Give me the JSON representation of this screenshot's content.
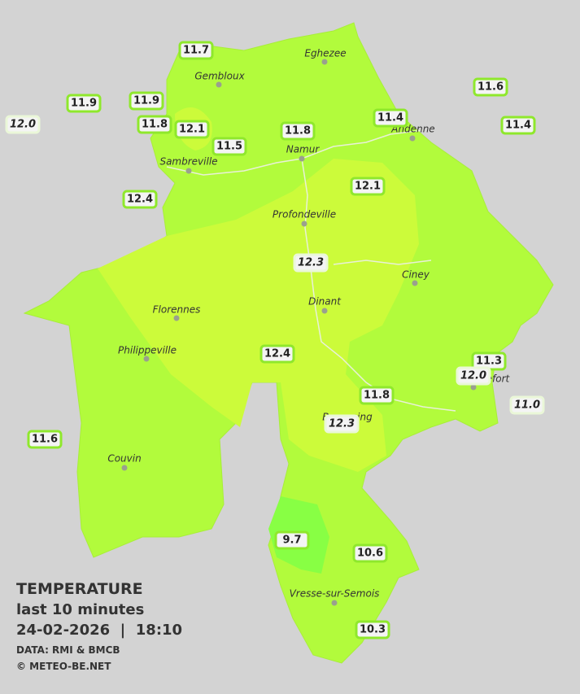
{
  "header": {
    "title": "TEMPERATURE",
    "subtitle": "last 10 minutes",
    "datetime": "24-02-2026  |  18:10",
    "source": "DATA: RMI & BMCB",
    "copyright": "© METEO-BE.NET"
  },
  "cities": [
    "Eghezee",
    "Gembloux",
    "Andenne",
    "Namur",
    "Sambreville",
    "Profondeville",
    "Ciney",
    "Dinant",
    "Florennes",
    "Philippeville",
    "Couvin",
    "Vresse-sur-Semois",
    "Beauraing",
    "Rochefort"
  ],
  "stations": [
    "11.7",
    "11.9",
    "11.9",
    "12.0",
    "11.8",
    "12.1",
    "11.5",
    "11.8",
    "11.4",
    "11.6",
    "11.4",
    "12.4",
    "12.1",
    "12.3",
    "12.4",
    "11.3",
    "12.0",
    "11.0",
    "11.8",
    "12.3",
    "11.6",
    "9.7",
    "10.6",
    "10.3"
  ]
}
